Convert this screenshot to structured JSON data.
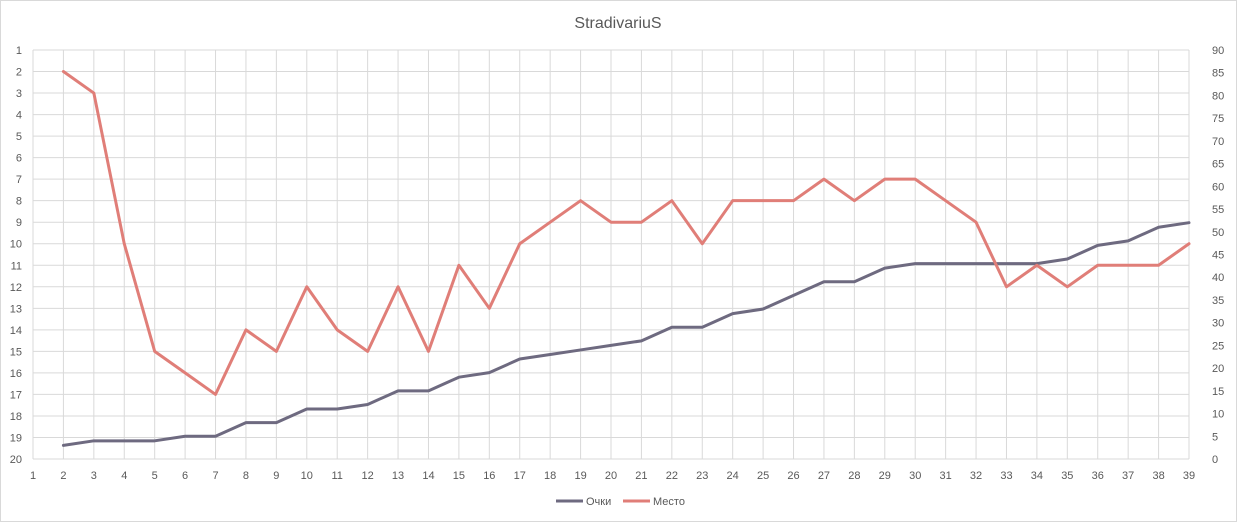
{
  "chart_data": {
    "type": "line",
    "title": "StradivariuS",
    "legend_position": "bottom",
    "grid": true,
    "x": [
      1,
      2,
      3,
      4,
      5,
      6,
      7,
      8,
      9,
      10,
      11,
      12,
      13,
      14,
      15,
      16,
      17,
      18,
      19,
      20,
      21,
      22,
      23,
      24,
      25,
      26,
      27,
      28,
      29,
      30,
      31,
      32,
      33,
      34,
      35,
      36,
      37,
      38,
      39
    ],
    "x_ticks": [
      1,
      2,
      3,
      4,
      5,
      6,
      7,
      8,
      9,
      10,
      11,
      12,
      13,
      14,
      15,
      16,
      17,
      18,
      19,
      20,
      21,
      22,
      23,
      24,
      25,
      26,
      27,
      28,
      29,
      30,
      31,
      32,
      33,
      34,
      35,
      36,
      37,
      38,
      39
    ],
    "left_axis": {
      "min": 1,
      "max": 20,
      "reversed": true,
      "ticks": [
        1,
        2,
        3,
        4,
        5,
        6,
        7,
        8,
        9,
        10,
        11,
        12,
        13,
        14,
        15,
        16,
        17,
        18,
        19,
        20
      ]
    },
    "right_axis": {
      "min": 0,
      "max": 90,
      "ticks": [
        0,
        5,
        10,
        15,
        20,
        25,
        30,
        35,
        40,
        45,
        50,
        55,
        60,
        65,
        70,
        75,
        80,
        85,
        90
      ]
    },
    "series": [
      {
        "name": "Очки",
        "axis": "right",
        "color": "#6e6a80",
        "x": [
          2,
          3,
          4,
          5,
          6,
          7,
          8,
          9,
          10,
          11,
          12,
          13,
          14,
          15,
          16,
          17,
          18,
          19,
          20,
          21,
          22,
          23,
          24,
          25,
          26,
          27,
          28,
          29,
          30,
          31,
          32,
          33,
          34,
          35,
          36,
          37,
          38,
          39
        ],
        "values": [
          3,
          4,
          4,
          4,
          5,
          5,
          8,
          8,
          11,
          11,
          12,
          15,
          15,
          18,
          19,
          22,
          23,
          24,
          25,
          26,
          29,
          29,
          32,
          33,
          36,
          39,
          39,
          42,
          43,
          43,
          43,
          43,
          43,
          44,
          47,
          48,
          51,
          52
        ]
      },
      {
        "name": "Место",
        "axis": "left",
        "color": "#e07e78",
        "x": [
          2,
          3,
          4,
          5,
          6,
          7,
          8,
          9,
          10,
          11,
          12,
          13,
          14,
          15,
          16,
          17,
          18,
          19,
          20,
          21,
          22,
          23,
          24,
          25,
          26,
          27,
          28,
          29,
          30,
          31,
          32,
          33,
          34,
          35,
          36,
          37,
          38,
          39
        ],
        "values": [
          2,
          3,
          10,
          15,
          16,
          17,
          14,
          15,
          12,
          14,
          15,
          12,
          15,
          11,
          13,
          10,
          9,
          8,
          9,
          9,
          8,
          10,
          8,
          8,
          8,
          7,
          8,
          7,
          7,
          8,
          9,
          12,
          11,
          12,
          11,
          11,
          11,
          10
        ]
      }
    ]
  }
}
